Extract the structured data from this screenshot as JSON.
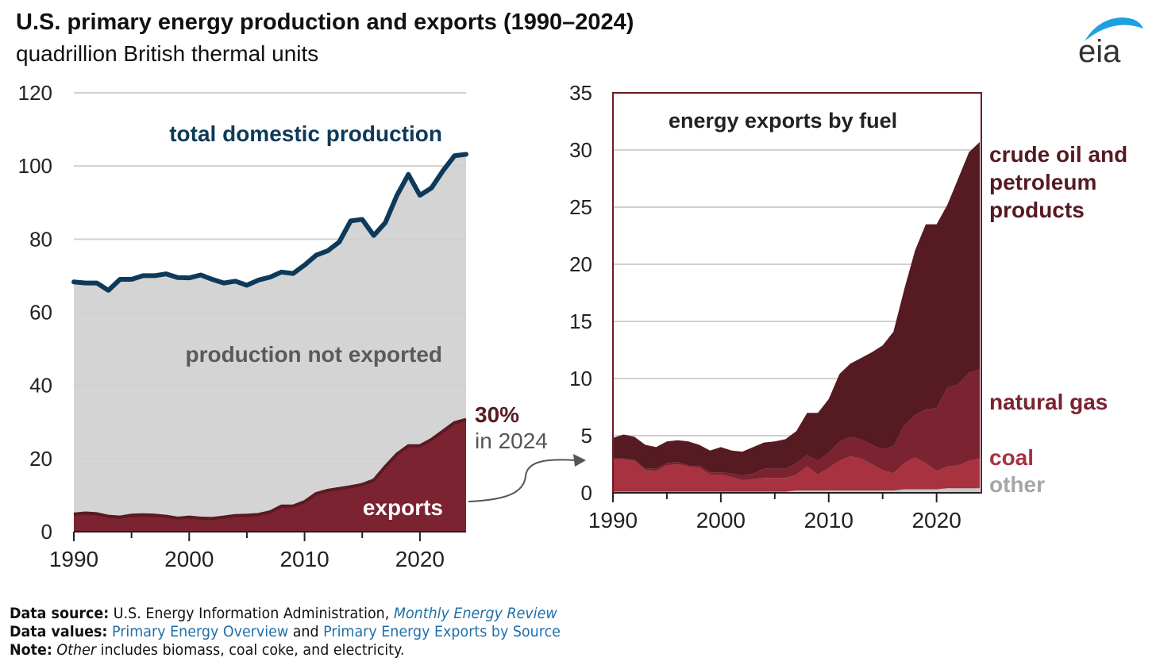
{
  "title": "U.S. primary energy production and exports (1990–2024)",
  "subtitle": "quadrillion British thermal units",
  "logo_text": "eia",
  "colors": {
    "production_line": "#0d3a5a",
    "production_fill": "#d4d4d4",
    "exports": "#7b2330",
    "crude": "#561a22",
    "natural_gas": "#7b2330",
    "coal": "#a8323f",
    "other": "#c8c8c8",
    "link": "#1f6fa8"
  },
  "chart_data": [
    {
      "type": "area",
      "title": "",
      "ylim": [
        0,
        120
      ],
      "yticks": [
        "0",
        "20",
        "40",
        "60",
        "80",
        "100",
        "120"
      ],
      "xticks": [
        "1990",
        "2000",
        "2010",
        "2020"
      ],
      "x": [
        1990,
        1991,
        1992,
        1993,
        1994,
        1995,
        1996,
        1997,
        1998,
        1999,
        2000,
        2001,
        2002,
        2003,
        2004,
        2005,
        2006,
        2007,
        2008,
        2009,
        2010,
        2011,
        2012,
        2013,
        2014,
        2015,
        2016,
        2017,
        2018,
        2019,
        2020,
        2021,
        2022,
        2023,
        2024
      ],
      "series": [
        {
          "name": "total domestic production",
          "values": [
            68.3,
            68,
            68,
            66,
            69,
            69,
            70,
            70,
            70.5,
            69.5,
            69.4,
            70.2,
            69,
            68,
            68.5,
            67.4,
            68.8,
            69.6,
            71,
            70.6,
            72.9,
            75.6,
            76.8,
            79.2,
            85,
            85.4,
            81,
            84.5,
            91.9,
            97.7,
            92,
            94,
            98.7,
            102.8,
            103.2
          ]
        },
        {
          "name": "exports",
          "values": [
            4.8,
            5.1,
            4.9,
            4.2,
            4.0,
            4.5,
            4.6,
            4.5,
            4.2,
            3.7,
            4.0,
            3.7,
            3.6,
            4.0,
            4.4,
            4.5,
            4.7,
            5.4,
            7.0,
            7.0,
            8.2,
            10.4,
            11.3,
            11.8,
            12.3,
            12.9,
            14.1,
            17.8,
            21.2,
            23.5,
            23.5,
            25.2,
            27.5,
            29.8,
            30.7
          ]
        }
      ],
      "annotations": {
        "production_label": "total domestic production",
        "not_exported_label": "production not exported",
        "exports_label": "exports",
        "share_value": "30%",
        "share_year": "in 2024"
      }
    },
    {
      "type": "area",
      "title": "energy exports by fuel",
      "ylim": [
        0,
        35
      ],
      "yticks": [
        "0",
        "5",
        "10",
        "15",
        "20",
        "25",
        "30",
        "35"
      ],
      "xticks": [
        "1990",
        "2000",
        "2010",
        "2020"
      ],
      "x": [
        1990,
        1991,
        1992,
        1993,
        1994,
        1995,
        1996,
        1997,
        1998,
        1999,
        2000,
        2001,
        2002,
        2003,
        2004,
        2005,
        2006,
        2007,
        2008,
        2009,
        2010,
        2011,
        2012,
        2013,
        2014,
        2015,
        2016,
        2017,
        2018,
        2019,
        2020,
        2021,
        2022,
        2023,
        2024
      ],
      "series": [
        {
          "name": "other",
          "values": [
            0.1,
            0.1,
            0.1,
            0.1,
            0.1,
            0.1,
            0.1,
            0.1,
            0.1,
            0.1,
            0.1,
            0.1,
            0.1,
            0.1,
            0.1,
            0.1,
            0.1,
            0.2,
            0.2,
            0.2,
            0.2,
            0.2,
            0.2,
            0.2,
            0.2,
            0.2,
            0.2,
            0.3,
            0.3,
            0.3,
            0.3,
            0.4,
            0.4,
            0.4,
            0.4
          ]
        },
        {
          "name": "coal",
          "values": [
            2.8,
            2.8,
            2.7,
            1.9,
            1.8,
            2.3,
            2.4,
            2.2,
            2.1,
            1.5,
            1.5,
            1.3,
            1.0,
            1.1,
            1.2,
            1.2,
            1.2,
            1.4,
            2.1,
            1.4,
            2.0,
            2.6,
            3.0,
            2.8,
            2.3,
            1.8,
            1.5,
            2.3,
            2.8,
            2.3,
            1.6,
            1.9,
            2.0,
            2.4,
            2.6
          ]
        },
        {
          "name": "natural gas",
          "values": [
            0.1,
            0.1,
            0.1,
            0.1,
            0.2,
            0.2,
            0.2,
            0.1,
            0.2,
            0.2,
            0.2,
            0.3,
            0.4,
            0.5,
            0.8,
            0.8,
            0.8,
            1.0,
            1.0,
            1.2,
            1.3,
            1.7,
            1.7,
            1.7,
            1.7,
            1.8,
            2.4,
            3.3,
            3.7,
            4.7,
            5.5,
            6.9,
            7.1,
            7.7,
            7.8
          ]
        },
        {
          "name": "crude oil and petroleum products",
          "values": [
            1.8,
            2.1,
            2.0,
            2.1,
            1.9,
            1.9,
            1.9,
            2.1,
            1.8,
            1.9,
            2.2,
            2.0,
            2.1,
            2.3,
            2.3,
            2.4,
            2.6,
            2.8,
            3.7,
            4.2,
            4.7,
            5.9,
            6.4,
            7.1,
            8.1,
            9.1,
            10.0,
            11.9,
            14.4,
            16.2,
            16.1,
            16.0,
            18.0,
            19.3,
            19.9
          ]
        }
      ],
      "labels": {
        "crude_line1": "crude oil and",
        "crude_line2": "petroleum",
        "crude_line3": "products",
        "natural_gas": "natural gas",
        "coal": "coal",
        "other": "other"
      }
    }
  ],
  "footer": {
    "source_label": "Data source:",
    "source_text": " U.S. Energy Information Administration, ",
    "source_link": "Monthly Energy Review",
    "values_label": "Data values:",
    "values_link1": "Primary Energy Overview",
    "values_and": " and ",
    "values_link2": "Primary Energy Exports by Source",
    "note_label": "Note:",
    "note_italic": "Other",
    "note_text": " includes biomass, coal coke, and electricity."
  }
}
